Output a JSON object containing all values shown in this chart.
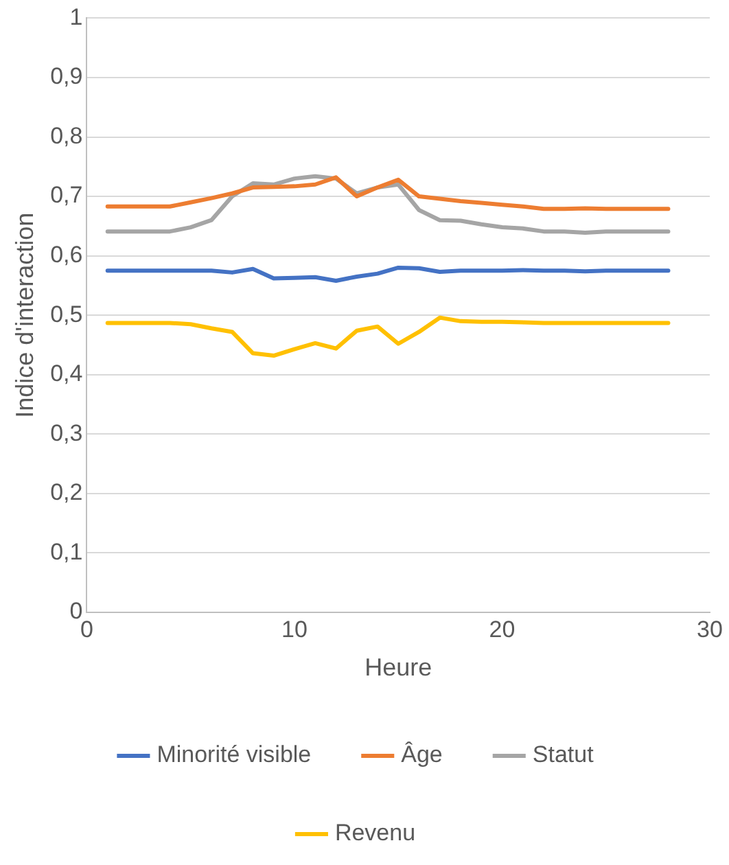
{
  "chart_data": {
    "type": "line",
    "xlabel": "Heure",
    "ylabel": "Indice d'interaction",
    "x": [
      1,
      2,
      3,
      4,
      5,
      6,
      7,
      8,
      9,
      10,
      11,
      12,
      13,
      14,
      15,
      16,
      17,
      18,
      19,
      20,
      21,
      22,
      23,
      24,
      25,
      26,
      27,
      28
    ],
    "series": [
      {
        "name": "Minorité visible",
        "color": "#4472c4",
        "values": [
          0.575,
          0.575,
          0.575,
          0.575,
          0.575,
          0.575,
          0.572,
          0.578,
          0.562,
          0.563,
          0.564,
          0.558,
          0.565,
          0.57,
          0.58,
          0.579,
          0.573,
          0.575,
          0.575,
          0.575,
          0.576,
          0.575,
          0.575,
          0.574,
          0.575,
          0.575,
          0.575,
          0.575
        ]
      },
      {
        "name": "Âge",
        "color": "#ed7d31",
        "values": [
          0.683,
          0.683,
          0.683,
          0.683,
          0.69,
          0.697,
          0.705,
          0.715,
          0.716,
          0.717,
          0.72,
          0.732,
          0.7,
          0.715,
          0.728,
          0.7,
          0.696,
          0.692,
          0.689,
          0.686,
          0.683,
          0.679,
          0.679,
          0.68,
          0.679,
          0.679,
          0.679,
          0.679
        ]
      },
      {
        "name": "Statut",
        "color": "#a5a5a5",
        "values": [
          0.641,
          0.641,
          0.641,
          0.641,
          0.648,
          0.66,
          0.7,
          0.722,
          0.72,
          0.73,
          0.734,
          0.73,
          0.705,
          0.715,
          0.72,
          0.677,
          0.66,
          0.659,
          0.653,
          0.648,
          0.646,
          0.641,
          0.641,
          0.639,
          0.641,
          0.641,
          0.641,
          0.641
        ]
      },
      {
        "name": "Revenu",
        "color": "#ffc000",
        "values": [
          0.487,
          0.487,
          0.487,
          0.487,
          0.485,
          0.478,
          0.472,
          0.436,
          0.432,
          0.443,
          0.453,
          0.444,
          0.474,
          0.481,
          0.452,
          0.472,
          0.496,
          0.49,
          0.489,
          0.489,
          0.488,
          0.487,
          0.487,
          0.487,
          0.487,
          0.487,
          0.487,
          0.487
        ]
      }
    ],
    "xlim": [
      0,
      30
    ],
    "xticks": [
      0,
      10,
      20,
      30
    ],
    "ylim": [
      0,
      1
    ],
    "yticks": [
      0,
      {
        "value": 0.1,
        "label": "0,1"
      },
      {
        "value": 0.2,
        "label": "0,2"
      },
      {
        "value": 0.3,
        "label": "0,3"
      },
      {
        "value": 0.4,
        "label": "0,4"
      },
      {
        "value": 0.5,
        "label": "0,5"
      },
      {
        "value": 0.6,
        "label": "0,6"
      },
      {
        "value": 0.7,
        "label": "0,7"
      },
      {
        "value": 0.8,
        "label": "0,8"
      },
      {
        "value": 0.9,
        "label": "0,9"
      },
      1
    ],
    "grid": "y",
    "legend": "bottom",
    "marker": "none",
    "line_style": "solid"
  }
}
